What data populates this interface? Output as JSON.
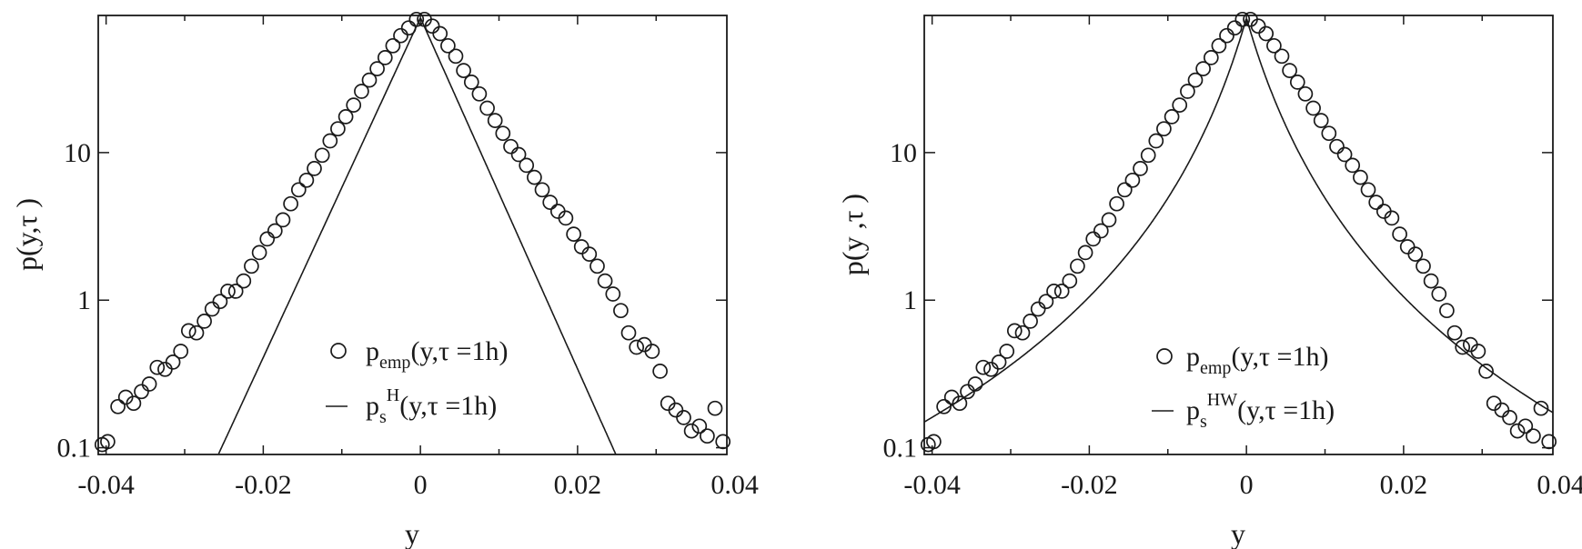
{
  "chart_data": [
    {
      "type": "scatter",
      "panel": "left",
      "xlabel": "y",
      "ylabel": "p(y,τ )",
      "xlim": [
        -0.041,
        0.039
      ],
      "ylim": [
        0.09,
        85
      ],
      "y_scale": "log",
      "x_ticks": [
        -0.04,
        -0.02,
        0,
        0.02,
        0.04
      ],
      "x_tick_labels": [
        "-0.04",
        "-0.02",
        "0",
        "0.02",
        "0.04"
      ],
      "y_ticks": [
        0.1,
        1,
        10
      ],
      "y_tick_labels": [
        "0.1",
        "1",
        "10"
      ],
      "grid": false,
      "legend_position": "lower-center",
      "series": [
        {
          "name": "p_emp(y,τ =1h)",
          "legend_main": "p",
          "legend_sub": "emp",
          "legend_rest": "(y,τ =1h)",
          "style": "open-circle",
          "x": [
            -0.0405,
            -0.0398,
            -0.0385,
            -0.0375,
            -0.0365,
            -0.0355,
            -0.0345,
            -0.0335,
            -0.0325,
            -0.0315,
            -0.0305,
            -0.0295,
            -0.0285,
            -0.0275,
            -0.0265,
            -0.0255,
            -0.0245,
            -0.0235,
            -0.0225,
            -0.0215,
            -0.0205,
            -0.0195,
            -0.0185,
            -0.0175,
            -0.0165,
            -0.0155,
            -0.0145,
            -0.0135,
            -0.0125,
            -0.0115,
            -0.0105,
            -0.0095,
            -0.0085,
            -0.0075,
            -0.0065,
            -0.0055,
            -0.0045,
            -0.0035,
            -0.0025,
            -0.0015,
            -0.0005,
            0.0005,
            0.0015,
            0.0025,
            0.0035,
            0.0045,
            0.0055,
            0.0065,
            0.0075,
            0.0085,
            0.0095,
            0.0105,
            0.0115,
            0.0125,
            0.0135,
            0.0145,
            0.0155,
            0.0165,
            0.0175,
            0.0185,
            0.0195,
            0.0205,
            0.0215,
            0.0225,
            0.0235,
            0.0245,
            0.0255,
            0.0265,
            0.0275,
            0.0285,
            0.0295,
            0.0305,
            0.0315,
            0.0325,
            0.0335,
            0.0345,
            0.0355,
            0.0365,
            0.0375,
            0.0385
          ],
          "y": [
            0.105,
            0.11,
            0.19,
            0.22,
            0.2,
            0.24,
            0.27,
            0.35,
            0.34,
            0.38,
            0.45,
            0.62,
            0.6,
            0.72,
            0.87,
            0.98,
            1.15,
            1.15,
            1.35,
            1.7,
            2.1,
            2.6,
            2.95,
            3.5,
            4.5,
            5.6,
            6.5,
            7.8,
            9.6,
            12,
            14.5,
            17.5,
            21,
            26,
            31,
            37,
            44,
            53,
            62,
            70,
            80,
            80,
            72,
            64,
            53,
            45,
            36,
            30,
            25,
            20,
            16.5,
            13.5,
            11,
            9.7,
            8.2,
            6.8,
            5.6,
            4.6,
            4,
            3.6,
            2.8,
            2.3,
            2.05,
            1.7,
            1.35,
            1.1,
            0.85,
            0.6,
            0.48,
            0.5,
            0.45,
            0.33,
            0.2,
            0.18,
            0.16,
            0.13,
            0.14,
            0.12,
            0.185,
            0.11
          ]
        },
        {
          "name": "p_s^H(y,τ =1h)",
          "legend_main": "p",
          "legend_sub": "s",
          "legend_sup": "H",
          "legend_rest": "(y,τ =1h)",
          "style": "line",
          "model": "two-sided exponential",
          "peak": 82,
          "left_decay": 265,
          "right_decay": 274
        }
      ]
    },
    {
      "type": "scatter",
      "panel": "right",
      "xlabel": "y",
      "ylabel": "p(y ,τ )",
      "xlim": [
        -0.041,
        0.039
      ],
      "ylim": [
        0.09,
        85
      ],
      "y_scale": "log",
      "x_ticks": [
        -0.04,
        -0.02,
        0,
        0.02,
        0.04
      ],
      "x_tick_labels": [
        "-0.04",
        "-0.02",
        "0",
        "0.02",
        "0.04"
      ],
      "y_ticks": [
        0.1,
        1,
        10
      ],
      "y_tick_labels": [
        "0.1",
        "1",
        "10"
      ],
      "grid": false,
      "legend_position": "lower-center",
      "series": [
        {
          "name": "p_emp(y,τ =1h)",
          "legend_main": "p",
          "legend_sub": "emp",
          "legend_rest": "(y,τ =1h)",
          "style": "open-circle",
          "x": [
            -0.0405,
            -0.0398,
            -0.0385,
            -0.0375,
            -0.0365,
            -0.0355,
            -0.0345,
            -0.0335,
            -0.0325,
            -0.0315,
            -0.0305,
            -0.0295,
            -0.0285,
            -0.0275,
            -0.0265,
            -0.0255,
            -0.0245,
            -0.0235,
            -0.0225,
            -0.0215,
            -0.0205,
            -0.0195,
            -0.0185,
            -0.0175,
            -0.0165,
            -0.0155,
            -0.0145,
            -0.0135,
            -0.0125,
            -0.0115,
            -0.0105,
            -0.0095,
            -0.0085,
            -0.0075,
            -0.0065,
            -0.0055,
            -0.0045,
            -0.0035,
            -0.0025,
            -0.0015,
            -0.0005,
            0.0005,
            0.0015,
            0.0025,
            0.0035,
            0.0045,
            0.0055,
            0.0065,
            0.0075,
            0.0085,
            0.0095,
            0.0105,
            0.0115,
            0.0125,
            0.0135,
            0.0145,
            0.0155,
            0.0165,
            0.0175,
            0.0185,
            0.0195,
            0.0205,
            0.0215,
            0.0225,
            0.0235,
            0.0245,
            0.0255,
            0.0265,
            0.0275,
            0.0285,
            0.0295,
            0.0305,
            0.0315,
            0.0325,
            0.0335,
            0.0345,
            0.0355,
            0.0365,
            0.0375,
            0.0385
          ],
          "y": [
            0.105,
            0.11,
            0.19,
            0.22,
            0.2,
            0.24,
            0.27,
            0.35,
            0.34,
            0.38,
            0.45,
            0.62,
            0.6,
            0.72,
            0.87,
            0.98,
            1.15,
            1.15,
            1.35,
            1.7,
            2.1,
            2.6,
            2.95,
            3.5,
            4.5,
            5.6,
            6.5,
            7.8,
            9.6,
            12,
            14.5,
            17.5,
            21,
            26,
            31,
            37,
            44,
            53,
            62,
            70,
            80,
            80,
            72,
            64,
            53,
            45,
            36,
            30,
            25,
            20,
            16.5,
            13.5,
            11,
            9.7,
            8.2,
            6.8,
            5.6,
            4.6,
            4,
            3.6,
            2.8,
            2.3,
            2.05,
            1.7,
            1.35,
            1.1,
            0.85,
            0.6,
            0.48,
            0.5,
            0.45,
            0.33,
            0.2,
            0.18,
            0.16,
            0.13,
            0.14,
            0.12,
            0.185,
            0.11
          ]
        },
        {
          "name": "p_s^HW(y,τ =1h)",
          "legend_main": "p",
          "legend_sub": "s",
          "legend_sup": "HW",
          "legend_rest": "(y,τ =1h)",
          "style": "line",
          "model": "heavy-tailed",
          "peak": 82,
          "scale": 0.0081,
          "exponent": 3.5
        }
      ]
    }
  ]
}
